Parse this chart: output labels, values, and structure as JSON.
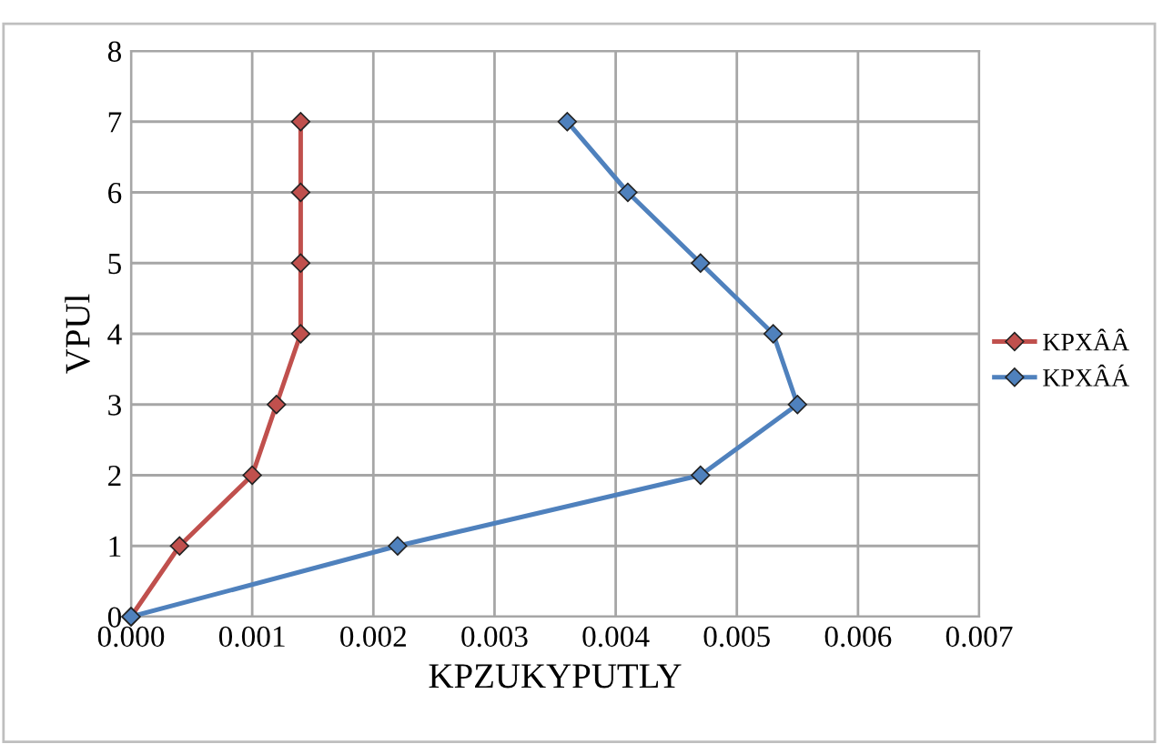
{
  "chart_data": {
    "type": "line",
    "xlabel": "KPZUKYPUTLY",
    "ylabel": "VPUl",
    "series": [
      {
        "name": "KPXÂÂ",
        "color": "#c0504d",
        "x": [
          0,
          0.0004,
          0.001,
          0.0012,
          0.0014,
          0.0014,
          0.0014,
          0.0014
        ],
        "values": [
          0,
          1,
          2,
          3,
          4,
          5,
          6,
          7
        ]
      },
      {
        "name": "KPXÂÁ",
        "color": "#4f81bd",
        "x": [
          0,
          0.0022,
          0.0047,
          0.0055,
          0.0053,
          0.0047,
          0.0041,
          0.0036
        ],
        "values": [
          0,
          1,
          2,
          3,
          4,
          5,
          6,
          7
        ]
      }
    ],
    "xlim": [
      0,
      0.007
    ],
    "xticks": [
      {
        "value": 0,
        "label": "0.000"
      },
      {
        "value": 0.001,
        "label": "0.001"
      },
      {
        "value": 0.002,
        "label": "0.002"
      },
      {
        "value": 0.003,
        "label": "0.003"
      },
      {
        "value": 0.004,
        "label": "0.004"
      },
      {
        "value": 0.005,
        "label": "0.005"
      },
      {
        "value": 0.006,
        "label": "0.006"
      },
      {
        "value": 0.007,
        "label": "0.007"
      }
    ],
    "ylim": [
      0,
      8
    ],
    "yticks": [
      0,
      1,
      2,
      3,
      4,
      5,
      6,
      7,
      8
    ],
    "grid": true,
    "legend": "right",
    "marker": "diamond",
    "line_style": "solid"
  }
}
